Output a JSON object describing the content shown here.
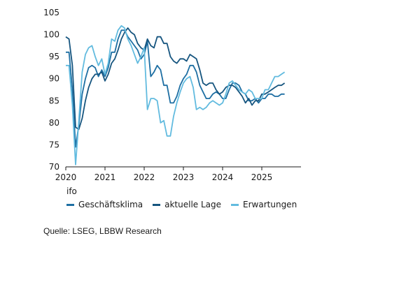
{
  "chart_data": {
    "type": "line",
    "yticks": [
      "70",
      "75",
      "80",
      "85",
      "90",
      "95",
      "100",
      "105"
    ],
    "ylim": [
      70,
      105
    ],
    "xticks": [
      {
        "label": "2020",
        "x": 2020.0
      },
      {
        "label": "2021",
        "x": 2021.0
      },
      {
        "label": "2022",
        "x": 2022.0
      },
      {
        "label": "2023",
        "x": 2023.0
      },
      {
        "label": "2024",
        "x": 2024.0
      },
      {
        "label": "2025",
        "x": 2025.0
      }
    ],
    "xlim": [
      2020.0,
      2026.0
    ],
    "legend_title": "ifo",
    "grid": "none",
    "series": [
      {
        "name": "Geschäftsklima",
        "color": "#1e6fa3",
        "x": [
          2020.0,
          2020.083,
          2020.167,
          2020.25,
          2020.333,
          2020.417,
          2020.5,
          2020.583,
          2020.667,
          2020.75,
          2020.833,
          2020.917,
          2021.0,
          2021.083,
          2021.167,
          2021.25,
          2021.333,
          2021.417,
          2021.5,
          2021.583,
          2021.667,
          2021.75,
          2021.833,
          2021.917,
          2022.0,
          2022.083,
          2022.167,
          2022.25,
          2022.333,
          2022.417,
          2022.5,
          2022.583,
          2022.667,
          2022.75,
          2022.833,
          2022.917,
          2023.0,
          2023.083,
          2023.167,
          2023.25,
          2023.333,
          2023.417,
          2023.5,
          2023.583,
          2023.667,
          2023.75,
          2023.833,
          2023.917,
          2024.0,
          2024.083,
          2024.167,
          2024.25,
          2024.333,
          2024.417,
          2024.5,
          2024.583,
          2024.667,
          2024.75,
          2024.833,
          2024.917,
          2025.0,
          2025.083,
          2025.167,
          2025.25,
          2025.333,
          2025.417,
          2025.5,
          2025.583
        ],
        "values": [
          96.0,
          96.0,
          87.5,
          74.5,
          79.5,
          86.5,
          90.0,
          92.5,
          93.0,
          92.5,
          90.5,
          92.0,
          90.5,
          92.5,
          96.0,
          96.0,
          99.0,
          101.0,
          101.0,
          99.5,
          98.5,
          97.5,
          96.5,
          94.5,
          95.5,
          98.5,
          90.5,
          91.5,
          93.0,
          92.0,
          88.5,
          88.5,
          84.5,
          84.5,
          86.0,
          88.5,
          90.0,
          91.0,
          93.0,
          93.0,
          91.5,
          88.5,
          87.0,
          85.5,
          85.5,
          86.5,
          87.0,
          86.5,
          85.5,
          85.5,
          87.5,
          89.0,
          89.0,
          88.5,
          87.0,
          86.5,
          85.0,
          85.0,
          85.5,
          84.5,
          85.5,
          85.5,
          86.5,
          86.5,
          86.0,
          86.0,
          86.5,
          86.5
        ]
      },
      {
        "name": "aktuelle Lage",
        "color": "#16557f",
        "x": [
          2020.0,
          2020.083,
          2020.167,
          2020.25,
          2020.333,
          2020.417,
          2020.5,
          2020.583,
          2020.667,
          2020.75,
          2020.833,
          2020.917,
          2021.0,
          2021.083,
          2021.167,
          2021.25,
          2021.333,
          2021.417,
          2021.5,
          2021.583,
          2021.667,
          2021.75,
          2021.833,
          2021.917,
          2022.0,
          2022.083,
          2022.167,
          2022.25,
          2022.333,
          2022.417,
          2022.5,
          2022.583,
          2022.667,
          2022.75,
          2022.833,
          2022.917,
          2023.0,
          2023.083,
          2023.167,
          2023.25,
          2023.333,
          2023.417,
          2023.5,
          2023.583,
          2023.667,
          2023.75,
          2023.833,
          2023.917,
          2024.0,
          2024.083,
          2024.167,
          2024.25,
          2024.333,
          2024.417,
          2024.5,
          2024.583,
          2024.667,
          2024.75,
          2024.833,
          2024.917,
          2025.0,
          2025.083,
          2025.167,
          2025.25,
          2025.333,
          2025.417,
          2025.5,
          2025.583
        ],
        "values": [
          99.5,
          99.0,
          93.0,
          79.0,
          78.5,
          81.0,
          85.0,
          88.0,
          90.0,
          91.0,
          91.0,
          91.5,
          89.5,
          91.0,
          93.5,
          94.5,
          96.5,
          99.0,
          100.5,
          101.5,
          100.5,
          100.0,
          98.0,
          97.0,
          96.5,
          99.0,
          97.5,
          97.0,
          99.5,
          99.5,
          98.0,
          98.0,
          95.0,
          94.0,
          93.5,
          94.5,
          94.5,
          94.0,
          95.5,
          95.0,
          94.5,
          92.0,
          89.0,
          88.5,
          89.0,
          89.0,
          87.5,
          86.5,
          87.0,
          88.0,
          88.5,
          88.5,
          88.0,
          87.0,
          86.0,
          84.5,
          85.5,
          84.0,
          85.0,
          85.0,
          86.5,
          86.5,
          87.0,
          87.5,
          88.0,
          88.5,
          88.5,
          89.0
        ]
      },
      {
        "name": "Erwartungen",
        "color": "#62bbdf",
        "x": [
          2020.0,
          2020.083,
          2020.167,
          2020.25,
          2020.333,
          2020.417,
          2020.5,
          2020.583,
          2020.667,
          2020.75,
          2020.833,
          2020.917,
          2021.0,
          2021.083,
          2021.167,
          2021.25,
          2021.333,
          2021.417,
          2021.5,
          2021.583,
          2021.667,
          2021.75,
          2021.833,
          2021.917,
          2022.0,
          2022.083,
          2022.167,
          2022.25,
          2022.333,
          2022.417,
          2022.5,
          2022.583,
          2022.667,
          2022.75,
          2022.833,
          2022.917,
          2023.0,
          2023.083,
          2023.167,
          2023.25,
          2023.333,
          2023.417,
          2023.5,
          2023.583,
          2023.667,
          2023.75,
          2023.833,
          2023.917,
          2024.0,
          2024.083,
          2024.167,
          2024.25,
          2024.333,
          2024.417,
          2024.5,
          2024.583,
          2024.667,
          2024.75,
          2024.833,
          2024.917,
          2025.0,
          2025.083,
          2025.167,
          2025.25,
          2025.333,
          2025.417,
          2025.5,
          2025.583
        ],
        "values": [
          93.0,
          93.0,
          84.0,
          70.5,
          80.5,
          91.5,
          95.5,
          97.0,
          97.5,
          95.0,
          93.0,
          94.5,
          91.0,
          93.5,
          99.0,
          98.5,
          101.0,
          102.0,
          101.5,
          99.0,
          97.5,
          95.5,
          93.5,
          95.0,
          97.0,
          83.0,
          85.5,
          85.5,
          85.0,
          80.0,
          80.5,
          77.0,
          77.0,
          81.5,
          84.5,
          87.0,
          89.0,
          90.0,
          90.5,
          88.0,
          83.0,
          83.5,
          83.0,
          83.5,
          84.5,
          85.0,
          84.5,
          84.0,
          84.5,
          86.5,
          89.0,
          89.5,
          88.5,
          87.5,
          87.0,
          86.5,
          87.5,
          87.0,
          85.5,
          85.5,
          85.5,
          87.5,
          87.5,
          89.0,
          90.5,
          90.5,
          91.0,
          91.5
        ]
      }
    ]
  },
  "source": "Quelle: LSEG, LBBW Research"
}
